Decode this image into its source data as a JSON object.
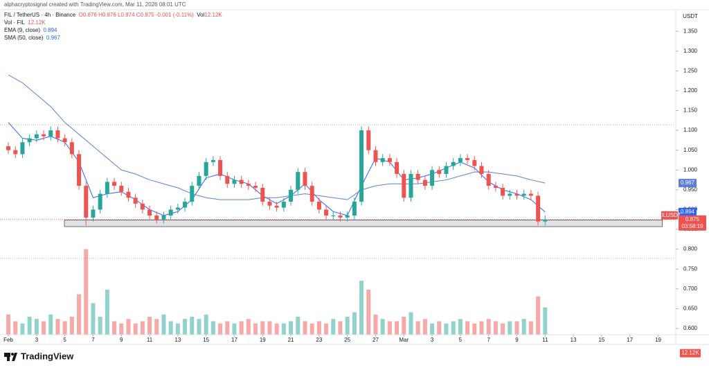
{
  "chart_data": {
    "type": "candlestick",
    "credit": "alphacryptosignal created with TradingView.com, Mar 11, 2026 08:01 UTC",
    "symbol": "FIL / TetherUS · 4h · Binance",
    "ohlc": "O0.876 H0.876 L0.874 C0.875 -0.001 (-0.11%)",
    "vol_title": "Vol",
    "vol_value": "12.12K",
    "volume_legend": {
      "name": "Vol · FIL",
      "value": "12.12K"
    },
    "currency": "USDT",
    "ticker": "FILUSDT",
    "last_price": "0.875",
    "last_price_value": 0.875,
    "countdown": "03:58:19",
    "brand": "TradingView",
    "colors": {
      "up": "#26a69a",
      "down": "#ef5350"
    },
    "xlim": [
      -0.59,
      47.2
    ],
    "ylim": [
      0.58,
      1.38
    ],
    "vlim": [
      0,
      40
    ],
    "xticks": [
      {
        "value": 0,
        "label": "Feb"
      },
      {
        "value": 2,
        "label": "3"
      },
      {
        "value": 4,
        "label": "5"
      },
      {
        "value": 6,
        "label": "7"
      },
      {
        "value": 8,
        "label": "9"
      },
      {
        "value": 10,
        "label": "11"
      },
      {
        "value": 12,
        "label": "13"
      },
      {
        "value": 14,
        "label": "15"
      },
      {
        "value": 16,
        "label": "17"
      },
      {
        "value": 18,
        "label": "19"
      },
      {
        "value": 20,
        "label": "21"
      },
      {
        "value": 22,
        "label": "23"
      },
      {
        "value": 24,
        "label": "25"
      },
      {
        "value": 26,
        "label": "27"
      },
      {
        "value": 28,
        "label": "Mar"
      },
      {
        "value": 30,
        "label": "3"
      },
      {
        "value": 32,
        "label": "5"
      },
      {
        "value": 34,
        "label": "7"
      },
      {
        "value": 36,
        "label": "9"
      },
      {
        "value": 38,
        "label": "11"
      },
      {
        "value": 40,
        "label": "13"
      },
      {
        "value": 42,
        "label": "15"
      },
      {
        "value": 44,
        "label": "17"
      },
      {
        "value": 46,
        "label": "19"
      }
    ],
    "yticks": [
      {
        "value": 0.6,
        "label": "0.600"
      },
      {
        "value": 0.65,
        "label": "0.650"
      },
      {
        "value": 0.7,
        "label": "0.700"
      },
      {
        "value": 0.75,
        "label": "0.750"
      },
      {
        "value": 0.8,
        "label": "0.800"
      },
      {
        "value": 0.85,
        "label": "0.850"
      },
      {
        "value": 0.9,
        "label": "0.900"
      },
      {
        "value": 0.95,
        "label": "0.950"
      },
      {
        "value": 1.0,
        "label": "1.000"
      },
      {
        "value": 1.05,
        "label": "1.050"
      },
      {
        "value": 1.1,
        "label": "1.100"
      },
      {
        "value": 1.15,
        "label": "1.150"
      },
      {
        "value": 1.2,
        "label": "1.200"
      },
      {
        "value": 1.25,
        "label": "1.250"
      },
      {
        "value": 1.3,
        "label": "1.300"
      },
      {
        "value": 1.35,
        "label": "1.350"
      }
    ],
    "x": [
      0,
      0.5,
      1,
      1.5,
      2,
      2.5,
      3,
      3.5,
      4,
      4.5,
      5,
      5.5,
      6,
      6.5,
      7,
      7.5,
      8,
      8.5,
      9,
      9.5,
      10,
      10.5,
      11,
      11.5,
      12,
      12.5,
      13,
      13.5,
      14,
      14.5,
      15,
      15.5,
      16,
      16.5,
      17,
      17.5,
      18,
      18.5,
      19,
      19.5,
      20,
      20.5,
      21,
      21.5,
      22,
      22.5,
      23,
      23.5,
      24,
      24.5,
      25,
      25.5,
      26,
      26.5,
      27,
      27.5,
      28,
      28.5,
      29,
      29.5,
      30,
      30.5,
      31,
      31.5,
      32,
      32.5,
      33,
      33.5,
      34,
      34.5,
      35,
      35.5,
      36,
      36.5,
      37,
      37.5,
      38
    ],
    "open": [
      1.06,
      1.05,
      1.04,
      1.07,
      1.08,
      1.09,
      1.085,
      1.1,
      1.08,
      1.07,
      1.04,
      0.96,
      0.88,
      0.9,
      0.94,
      0.97,
      0.96,
      0.945,
      0.93,
      0.915,
      0.9,
      0.885,
      0.875,
      0.885,
      0.9,
      0.905,
      0.92,
      0.96,
      0.985,
      1.02,
      1.025,
      0.985,
      0.965,
      0.975,
      0.965,
      0.96,
      0.955,
      0.92,
      0.91,
      0.905,
      0.92,
      0.95,
      0.995,
      0.96,
      0.92,
      0.9,
      0.885,
      0.885,
      0.88,
      0.885,
      0.92,
      1.1,
      1.05,
      1.02,
      1.03,
      1.02,
      0.99,
      0.93,
      0.99,
      0.975,
      0.96,
      1.0,
      0.99,
      1.01,
      1.02,
      1.03,
      1.025,
      1.01,
      0.99,
      0.96,
      0.955,
      0.935,
      0.94,
      0.935,
      0.94,
      0.935,
      0.87
    ],
    "high": [
      1.07,
      1.06,
      1.08,
      1.09,
      1.1,
      1.1,
      1.11,
      1.11,
      1.09,
      1.08,
      1.05,
      0.97,
      0.91,
      0.95,
      0.98,
      0.98,
      0.97,
      0.955,
      0.94,
      0.925,
      0.91,
      0.895,
      0.895,
      0.91,
      0.915,
      0.93,
      0.97,
      0.995,
      1.03,
      1.035,
      1.035,
      0.995,
      0.985,
      0.985,
      0.975,
      0.97,
      0.965,
      0.93,
      0.92,
      0.93,
      0.96,
      1.005,
      1.005,
      0.97,
      0.93,
      0.91,
      0.895,
      0.895,
      0.895,
      0.93,
      1.11,
      1.11,
      1.06,
      1.04,
      1.04,
      1.03,
      1.0,
      1.0,
      1.0,
      0.985,
      1.01,
      1.01,
      1.02,
      1.03,
      1.04,
      1.04,
      1.035,
      1.02,
      1.0,
      0.97,
      0.965,
      0.95,
      0.95,
      0.95,
      0.95,
      0.945,
      0.885
    ],
    "low": [
      1.04,
      1.03,
      1.03,
      1.06,
      1.07,
      1.075,
      1.075,
      1.07,
      1.06,
      1.03,
      0.95,
      0.86,
      0.87,
      0.89,
      0.93,
      0.95,
      0.935,
      0.92,
      0.905,
      0.89,
      0.875,
      0.865,
      0.865,
      0.875,
      0.89,
      0.895,
      0.91,
      0.95,
      0.975,
      1.01,
      0.975,
      0.955,
      0.955,
      0.955,
      0.95,
      0.945,
      0.91,
      0.9,
      0.895,
      0.895,
      0.91,
      0.94,
      0.95,
      0.91,
      0.89,
      0.875,
      0.875,
      0.87,
      0.87,
      0.875,
      0.91,
      1.04,
      1.01,
      1.01,
      1.01,
      0.98,
      0.92,
      0.92,
      0.965,
      0.95,
      0.95,
      0.98,
      0.98,
      1.0,
      1.01,
      1.015,
      1.0,
      0.98,
      0.95,
      0.945,
      0.925,
      0.925,
      0.925,
      0.925,
      0.925,
      0.86,
      0.86
    ],
    "close": [
      1.05,
      1.04,
      1.07,
      1.08,
      1.09,
      1.085,
      1.1,
      1.08,
      1.07,
      1.04,
      0.96,
      0.88,
      0.9,
      0.94,
      0.97,
      0.96,
      0.945,
      0.93,
      0.915,
      0.9,
      0.885,
      0.875,
      0.885,
      0.9,
      0.905,
      0.92,
      0.96,
      0.985,
      1.02,
      1.025,
      0.985,
      0.965,
      0.975,
      0.965,
      0.96,
      0.955,
      0.92,
      0.91,
      0.905,
      0.92,
      0.95,
      0.995,
      0.96,
      0.92,
      0.9,
      0.885,
      0.885,
      0.88,
      0.885,
      0.92,
      1.1,
      1.05,
      1.02,
      1.03,
      1.02,
      0.99,
      0.93,
      0.99,
      0.975,
      0.96,
      1.0,
      0.99,
      1.01,
      1.02,
      1.03,
      1.025,
      1.01,
      0.99,
      0.96,
      0.955,
      0.935,
      0.94,
      0.935,
      0.94,
      0.935,
      0.87,
      0.875
    ],
    "volume": [
      9,
      6,
      5,
      8,
      7,
      6,
      9,
      7,
      6,
      8,
      18,
      38,
      14,
      8,
      20,
      6,
      5,
      7,
      5,
      6,
      8,
      7,
      9,
      6,
      5,
      7,
      8,
      7,
      9,
      6,
      5,
      6,
      5,
      6,
      7,
      5,
      6,
      6,
      5,
      5,
      6,
      8,
      6,
      5,
      6,
      5,
      7,
      6,
      8,
      10,
      24,
      20,
      9,
      7,
      6,
      6,
      8,
      10,
      6,
      7,
      5,
      6,
      5,
      6,
      7,
      6,
      5,
      6,
      7,
      6,
      5,
      6,
      6,
      7,
      6,
      17,
      12.12
    ],
    "ema": {
      "name": "EMA (9, close)",
      "last_label": "0.894",
      "color": "#2962ff",
      "x": [
        0,
        1,
        2,
        3,
        4,
        5,
        6,
        7,
        8,
        9,
        10,
        11,
        12,
        13,
        14,
        15,
        16,
        17,
        18,
        19,
        20,
        21,
        22,
        23,
        24,
        25,
        26,
        27,
        28,
        29,
        30,
        31,
        32,
        33,
        34,
        35,
        36,
        37,
        38
      ],
      "values": [
        1.12,
        1.08,
        1.075,
        1.085,
        1.07,
        1.02,
        0.93,
        0.94,
        0.945,
        0.925,
        0.9,
        0.885,
        0.895,
        0.925,
        0.98,
        0.99,
        0.975,
        0.965,
        0.935,
        0.915,
        0.935,
        0.965,
        0.925,
        0.895,
        0.885,
        0.96,
        1.03,
        1.02,
        0.975,
        0.98,
        0.99,
        1.005,
        1.02,
        1.005,
        0.97,
        0.95,
        0.94,
        0.925,
        0.894
      ]
    },
    "sma": {
      "name": "SMA (50, close)",
      "last_label": "0.967",
      "color": "#5b7fd6",
      "x": [
        0,
        1,
        2,
        3,
        4,
        5,
        6,
        7,
        8,
        9,
        10,
        11,
        12,
        13,
        14,
        15,
        16,
        17,
        18,
        19,
        20,
        21,
        22,
        23,
        24,
        25,
        26,
        27,
        28,
        29,
        30,
        31,
        32,
        33,
        34,
        35,
        36,
        37,
        38
      ],
      "values": [
        1.24,
        1.22,
        1.19,
        1.16,
        1.12,
        1.09,
        1.06,
        1.03,
        1.0,
        0.99,
        0.975,
        0.965,
        0.955,
        0.94,
        0.93,
        0.925,
        0.925,
        0.925,
        0.93,
        0.93,
        0.935,
        0.94,
        0.935,
        0.93,
        0.925,
        0.95,
        0.96,
        0.965,
        0.965,
        0.965,
        0.97,
        0.975,
        0.985,
        0.995,
        0.995,
        0.99,
        0.985,
        0.975,
        0.967
      ]
    },
    "zone": {
      "x": [
        3.97,
        46.3
      ],
      "y": [
        0.857,
        0.874
      ]
    },
    "levels": [
      1.114,
      0.777
    ]
  }
}
